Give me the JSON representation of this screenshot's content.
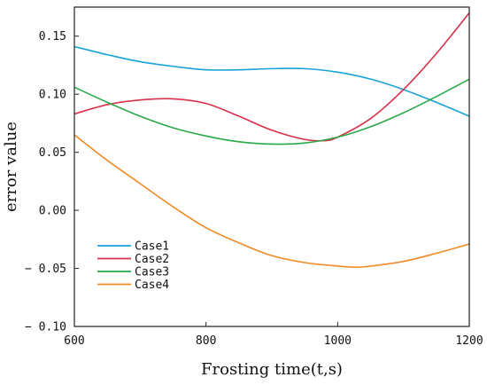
{
  "chart_data": {
    "type": "line",
    "xlabel": "Frosting time(t,s)",
    "ylabel": "error value",
    "xlim": [
      600,
      1200
    ],
    "ylim": [
      -0.1,
      0.175
    ],
    "xticks": [
      600,
      800,
      1000,
      1200
    ],
    "xtick_labels": [
      "600",
      "800",
      "1000",
      "1200"
    ],
    "yticks": [
      -0.1,
      -0.05,
      0.0,
      0.05,
      0.1,
      0.15
    ],
    "ytick_labels": [
      "− 0.10",
      "− 0.05",
      "0.00",
      "0.05",
      "0.10",
      "0.15"
    ],
    "grid": false,
    "legend_position": "bottom-left",
    "series": [
      {
        "name": "Case1",
        "color": "#1aa3d9",
        "x": [
          600,
          650,
          700,
          750,
          800,
          850,
          900,
          950,
          1000,
          1050,
          1100,
          1150,
          1200
        ],
        "y": [
          0.141,
          0.134,
          0.128,
          0.124,
          0.121,
          0.121,
          0.122,
          0.122,
          0.119,
          0.113,
          0.104,
          0.093,
          0.081
        ]
      },
      {
        "name": "Case2",
        "color": "#d9304a",
        "x": [
          600,
          650,
          700,
          750,
          800,
          850,
          900,
          950,
          980,
          1000,
          1050,
          1100,
          1150,
          1200
        ],
        "y": [
          0.083,
          0.091,
          0.095,
          0.096,
          0.092,
          0.081,
          0.069,
          0.061,
          0.06,
          0.063,
          0.079,
          0.104,
          0.135,
          0.17
        ]
      },
      {
        "name": "Case3",
        "color": "#2aa84a",
        "x": [
          600,
          650,
          700,
          750,
          800,
          850,
          900,
          950,
          1000,
          1050,
          1100,
          1150,
          1200
        ],
        "y": [
          0.106,
          0.093,
          0.081,
          0.071,
          0.064,
          0.059,
          0.057,
          0.058,
          0.063,
          0.072,
          0.084,
          0.098,
          0.113
        ]
      },
      {
        "name": "Case4",
        "color": "#f08a24",
        "x": [
          600,
          650,
          700,
          750,
          800,
          850,
          900,
          950,
          1000,
          1030,
          1050,
          1100,
          1150,
          1200
        ],
        "y": [
          0.065,
          0.043,
          0.023,
          0.003,
          -0.015,
          -0.028,
          -0.039,
          -0.045,
          -0.048,
          -0.049,
          -0.048,
          -0.044,
          -0.037,
          -0.029
        ]
      }
    ]
  }
}
